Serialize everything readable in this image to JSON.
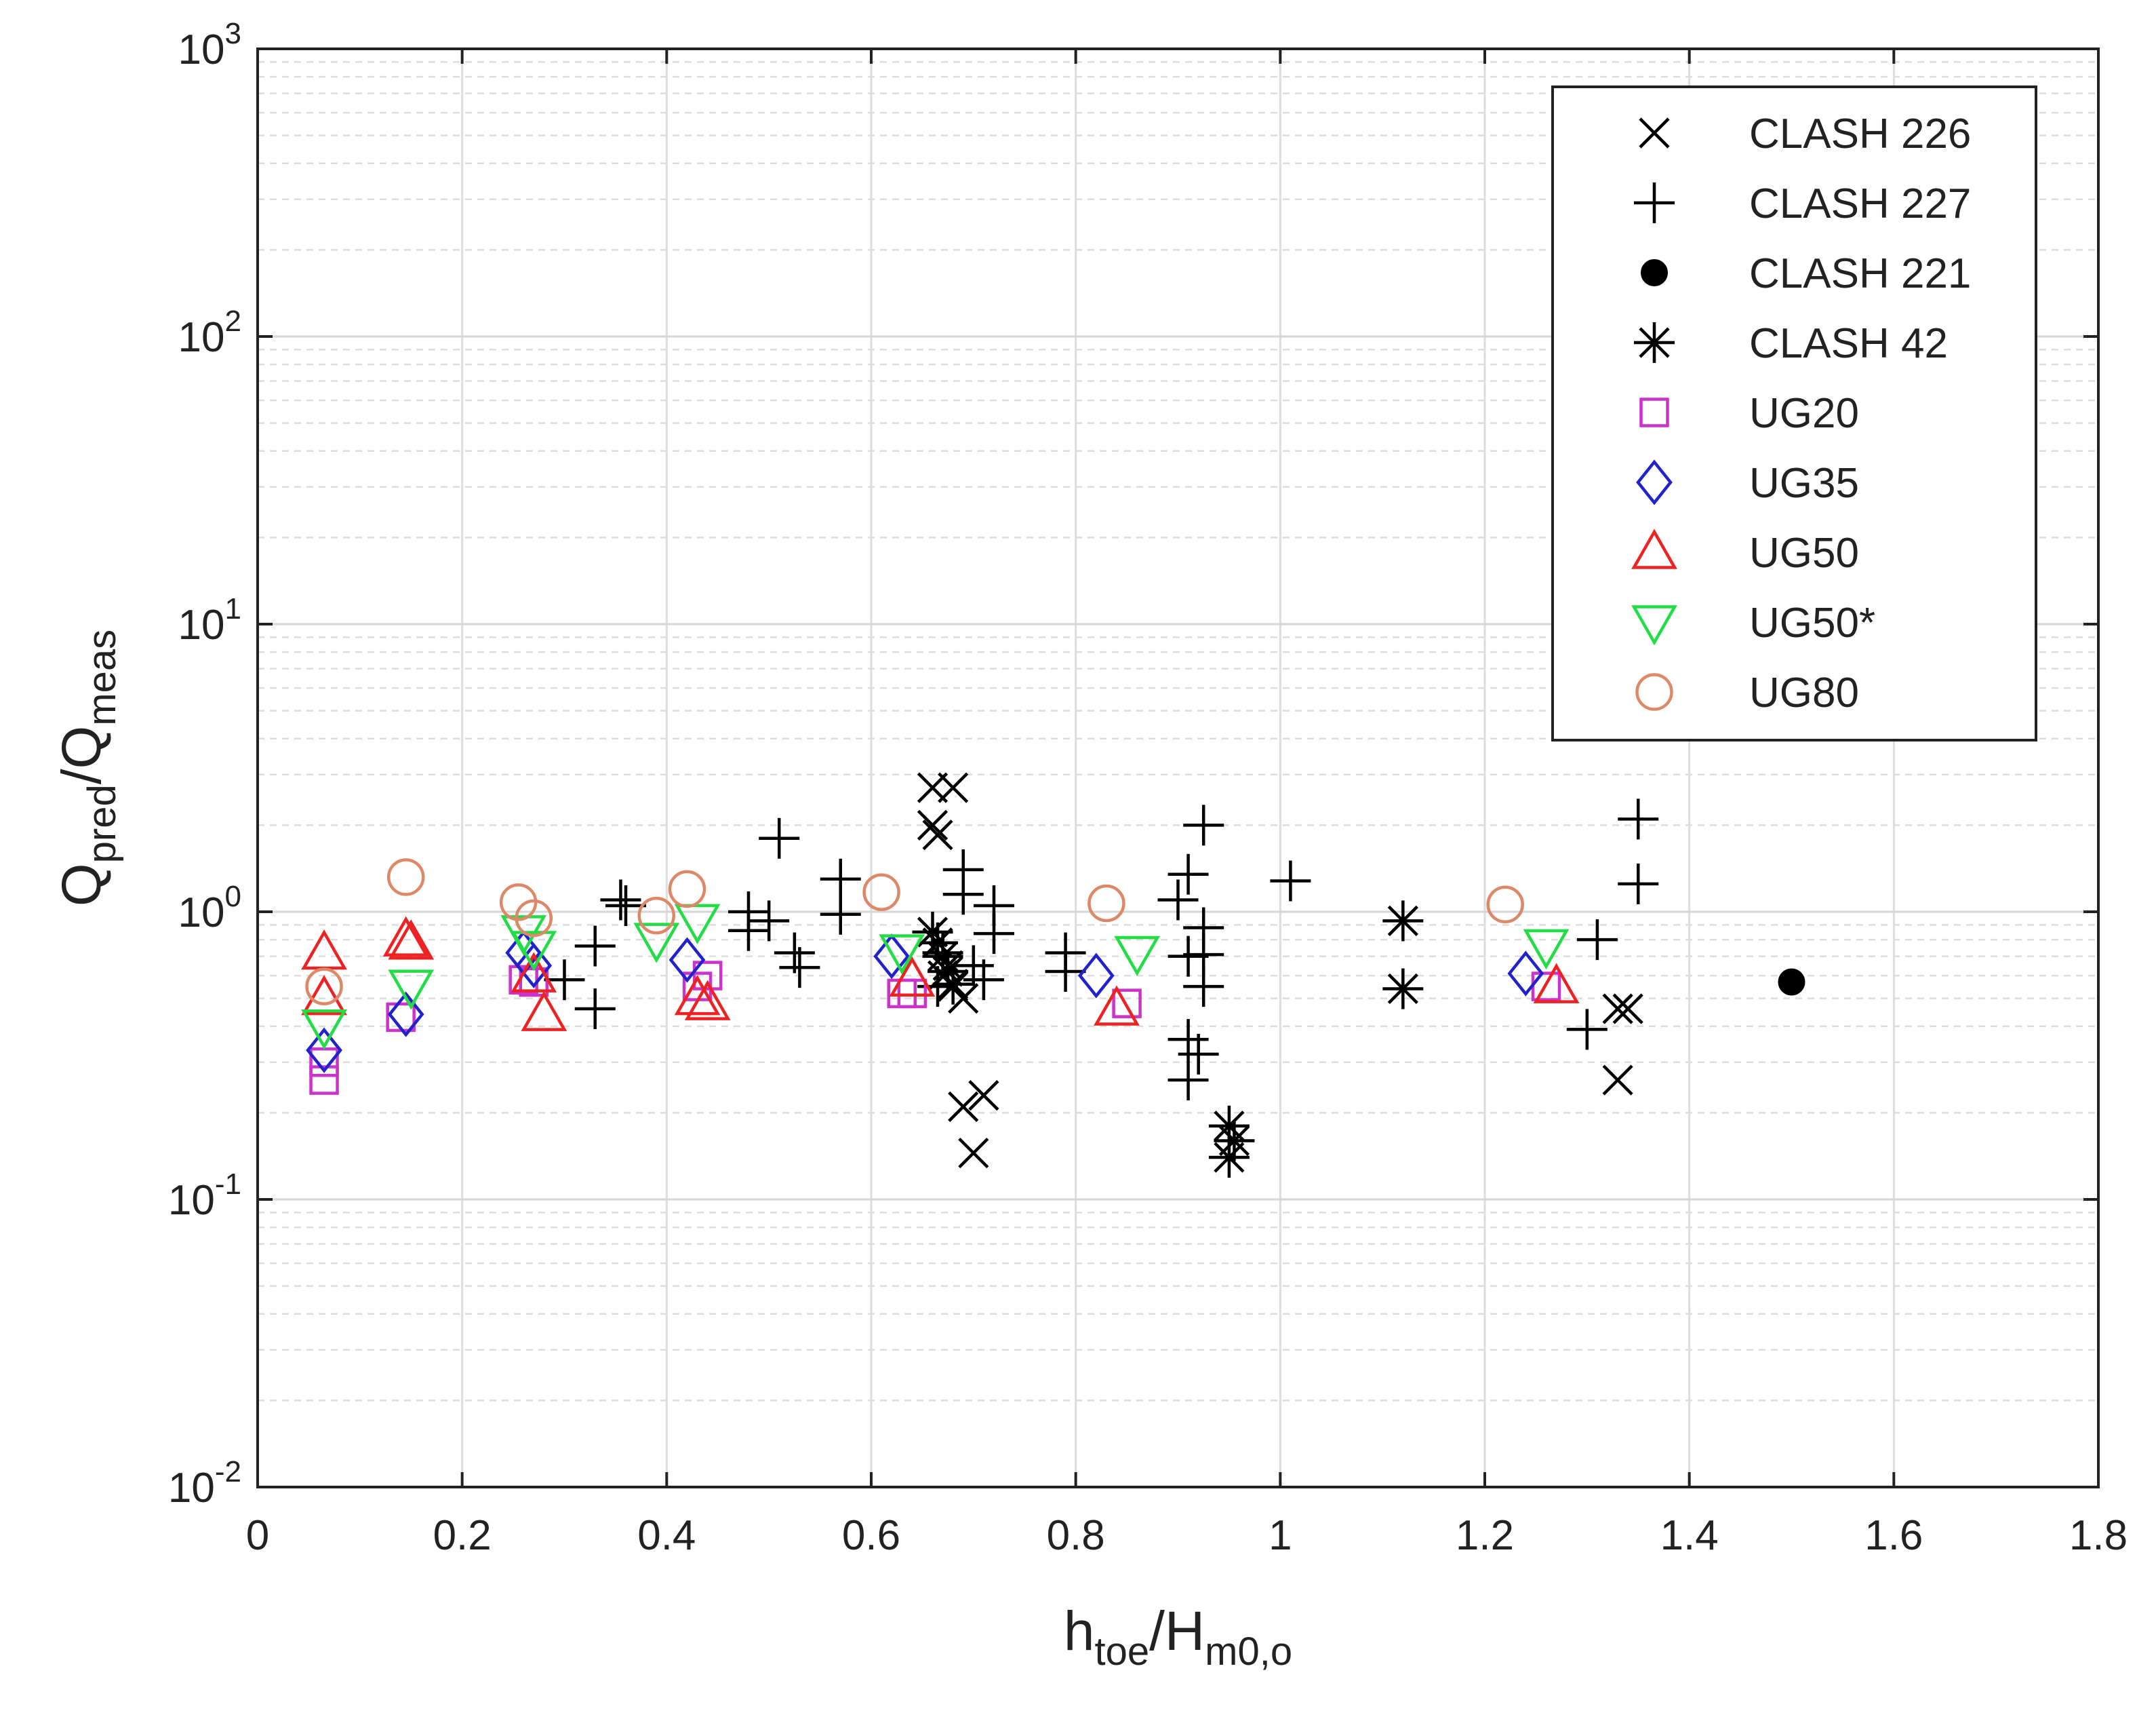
{
  "chart_data": {
    "type": "scatter",
    "x_axis": {
      "label_main": "h",
      "label_sub": "toe",
      "label_slash": "/H",
      "label_sub2": "m0,o",
      "range": [
        0,
        1.8
      ],
      "ticks": [
        0,
        0.2,
        0.4,
        0.6,
        0.8,
        1,
        1.2,
        1.4,
        1.6,
        1.8
      ],
      "tick_labels": [
        "0",
        "0.2",
        "0.4",
        "0.6",
        "0.8",
        "1",
        "1.2",
        "1.4",
        "1.6",
        "1.8"
      ]
    },
    "y_axis": {
      "scale": "log",
      "label_main": "Q",
      "label_sub": "pred",
      "label_slash": "/Q",
      "label_sub2": "meas",
      "range": [
        0.01,
        1000
      ],
      "tick_exponents": [
        "-2",
        "-1",
        "0",
        "1",
        "2",
        "3"
      ],
      "tick_base": "10"
    },
    "grid": "major and minor",
    "legend_placement": "top-right",
    "series": [
      {
        "name": "CLASH 226",
        "marker": "x",
        "color": "#000000",
        "points": [
          [
            0.66,
            2.7
          ],
          [
            0.68,
            2.7
          ],
          [
            0.66,
            2.0
          ],
          [
            0.665,
            1.85
          ],
          [
            0.67,
            0.6
          ],
          [
            0.68,
            0.55
          ],
          [
            0.69,
            0.5
          ],
          [
            0.675,
            0.65
          ],
          [
            0.69,
            0.21
          ],
          [
            0.71,
            0.23
          ],
          [
            0.7,
            0.145
          ],
          [
            1.33,
            0.46
          ],
          [
            1.34,
            0.46
          ],
          [
            1.33,
            0.26
          ]
        ]
      },
      {
        "name": "CLASH 227",
        "marker": "plus",
        "color": "#000000",
        "points": [
          [
            0.33,
            0.76
          ],
          [
            0.33,
            0.46
          ],
          [
            0.3,
            0.58
          ],
          [
            0.355,
            1.1
          ],
          [
            0.36,
            1.05
          ],
          [
            0.48,
            1.0
          ],
          [
            0.48,
            0.86
          ],
          [
            0.5,
            0.93
          ],
          [
            0.51,
            1.8
          ],
          [
            0.525,
            0.72
          ],
          [
            0.53,
            0.64
          ],
          [
            0.57,
            1.3
          ],
          [
            0.57,
            0.98
          ],
          [
            0.665,
            0.55
          ],
          [
            0.67,
            0.72
          ],
          [
            0.69,
            1.4
          ],
          [
            0.69,
            1.15
          ],
          [
            0.7,
            0.65
          ],
          [
            0.71,
            0.58
          ],
          [
            0.72,
            1.05
          ],
          [
            0.72,
            0.84
          ],
          [
            0.79,
            0.72
          ],
          [
            0.79,
            0.62
          ],
          [
            0.9,
            1.1
          ],
          [
            0.91,
            1.35
          ],
          [
            0.91,
            0.7
          ],
          [
            0.91,
            0.36
          ],
          [
            0.92,
            0.32
          ],
          [
            0.91,
            0.26
          ],
          [
            0.925,
            2.0
          ],
          [
            0.925,
            0.88
          ],
          [
            0.925,
            0.71
          ],
          [
            0.925,
            0.55
          ],
          [
            1.01,
            1.28
          ],
          [
            1.3,
            0.39
          ],
          [
            1.31,
            0.8
          ],
          [
            1.35,
            2.1
          ],
          [
            1.35,
            1.25
          ]
        ]
      },
      {
        "name": "CLASH 221",
        "marker": "dot",
        "color": "#000000",
        "points": [
          [
            1.5,
            0.57
          ]
        ]
      },
      {
        "name": "CLASH 42",
        "marker": "asterisk",
        "color": "#000000",
        "points": [
          [
            0.66,
            0.85
          ],
          [
            0.665,
            0.78
          ],
          [
            0.67,
            0.7
          ],
          [
            0.675,
            0.62
          ],
          [
            0.68,
            0.56
          ],
          [
            0.95,
            0.18
          ],
          [
            0.955,
            0.16
          ],
          [
            0.95,
            0.14
          ],
          [
            1.12,
            0.93
          ],
          [
            1.12,
            0.54
          ]
        ]
      },
      {
        "name": "UG20",
        "marker": "square",
        "color": "#cc33cc",
        "points": [
          [
            0.065,
            0.26
          ],
          [
            0.065,
            0.3
          ],
          [
            0.14,
            0.43
          ],
          [
            0.26,
            0.58
          ],
          [
            0.27,
            0.57
          ],
          [
            0.44,
            0.6
          ],
          [
            0.43,
            0.55
          ],
          [
            0.63,
            0.52
          ],
          [
            0.64,
            0.52
          ],
          [
            0.85,
            0.48
          ],
          [
            1.26,
            0.55
          ]
        ]
      },
      {
        "name": "UG35",
        "marker": "diamond",
        "color": "#2222cc",
        "points": [
          [
            0.065,
            0.33
          ],
          [
            0.145,
            0.44
          ],
          [
            0.26,
            0.72
          ],
          [
            0.27,
            0.65
          ],
          [
            0.42,
            0.68
          ],
          [
            0.62,
            0.7
          ],
          [
            0.82,
            0.6
          ],
          [
            1.24,
            0.61
          ]
        ]
      },
      {
        "name": "UG50",
        "marker": "triangle-up",
        "color": "#ee2222",
        "points": [
          [
            0.065,
            0.72
          ],
          [
            0.065,
            0.5
          ],
          [
            0.145,
            0.8
          ],
          [
            0.15,
            0.78
          ],
          [
            0.27,
            0.6
          ],
          [
            0.28,
            0.44
          ],
          [
            0.43,
            0.5
          ],
          [
            0.44,
            0.48
          ],
          [
            0.64,
            0.58
          ],
          [
            0.84,
            0.46
          ],
          [
            1.27,
            0.55
          ]
        ]
      },
      {
        "name": "UG50*",
        "marker": "triangle-down",
        "color": "#22dd44",
        "points": [
          [
            0.065,
            0.4
          ],
          [
            0.15,
            0.55
          ],
          [
            0.26,
            0.85
          ],
          [
            0.27,
            0.75
          ],
          [
            0.39,
            0.8
          ],
          [
            0.43,
            0.93
          ],
          [
            0.63,
            0.73
          ],
          [
            0.86,
            0.72
          ],
          [
            1.26,
            0.76
          ]
        ]
      },
      {
        "name": "UG80",
        "marker": "circle",
        "color": "#dd8866",
        "points": [
          [
            0.065,
            0.55
          ],
          [
            0.145,
            1.32
          ],
          [
            0.255,
            1.08
          ],
          [
            0.27,
            0.95
          ],
          [
            0.39,
            0.97
          ],
          [
            0.42,
            1.2
          ],
          [
            0.61,
            1.17
          ],
          [
            0.83,
            1.07
          ],
          [
            1.22,
            1.06
          ]
        ]
      }
    ]
  }
}
